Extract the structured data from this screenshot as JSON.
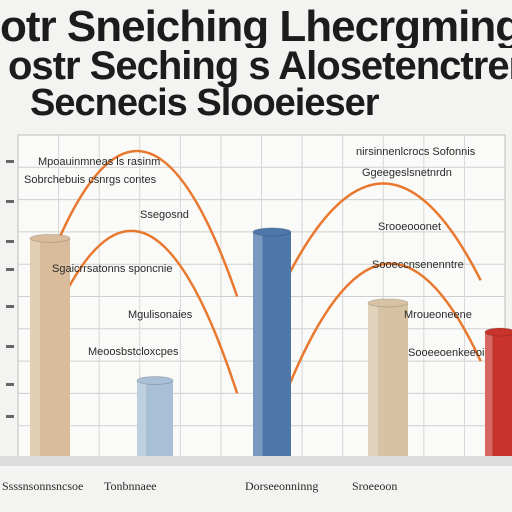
{
  "header": {
    "line1": "otr Sneiching Lhecrgming Scol",
    "line2": "ostr Seching s Alosetenctrenr",
    "line3": "Secnecis Slooeieser"
  },
  "chart_data": {
    "type": "bar",
    "title": "otr Sneiching Lhecrgming Scol ostr Seching s Alosetenctrenr Secnecis Slooeieser",
    "xlabel": "",
    "ylabel": "",
    "grid": true,
    "ylim": [
      0,
      10
    ],
    "bars": [
      {
        "value": 6.8,
        "color": "#d8bc9c"
      },
      {
        "value": 2.4,
        "color": "#a9bfd6"
      },
      {
        "value": 7.0,
        "color": "#4c77a8"
      },
      {
        "value": 4.8,
        "color": "#d7c3a4"
      },
      {
        "value": 3.9,
        "color": "#c8342c"
      }
    ],
    "lines": [
      {
        "name": "",
        "color": "#e9782f",
        "points": [
          [
            0.5,
            5.5
          ],
          [
            2.5,
            9.5
          ],
          [
            4.5,
            5.0
          ]
        ]
      },
      {
        "name": "",
        "color": "#e9782f",
        "points": [
          [
            0.5,
            3.5
          ],
          [
            2.5,
            7.0
          ],
          [
            4.5,
            2.0
          ]
        ]
      },
      {
        "name": "",
        "color": "#e9782f",
        "points": [
          [
            5.5,
            5.5
          ],
          [
            7.5,
            8.5
          ],
          [
            9.5,
            5.5
          ]
        ]
      },
      {
        "name": "",
        "color": "#e9782f",
        "points": [
          [
            5.5,
            2.0
          ],
          [
            7.5,
            6.0
          ],
          [
            9.5,
            3.0
          ]
        ]
      }
    ],
    "annotations": [
      "Mpoauinmneas ls rasinm",
      "Sobrchebuis csnrgs contes",
      "Ssegosnd",
      "Sgaicrrsatonns sponcnie",
      "Mgulisonaies",
      "Meoosbstcloxcpes",
      "nirsinnenlcrocs Sofonnis",
      "Ggeegeslsnetnrdn",
      "Srooeooonet",
      "Sooeccnsenenntre",
      "Mroueoneene",
      "Sooeeoenkeeoi"
    ],
    "footer": [
      "Ssssnsonnsncsoe",
      "Tonbnnaee",
      "Dorseeonninng",
      "Sroeeoon"
    ]
  }
}
